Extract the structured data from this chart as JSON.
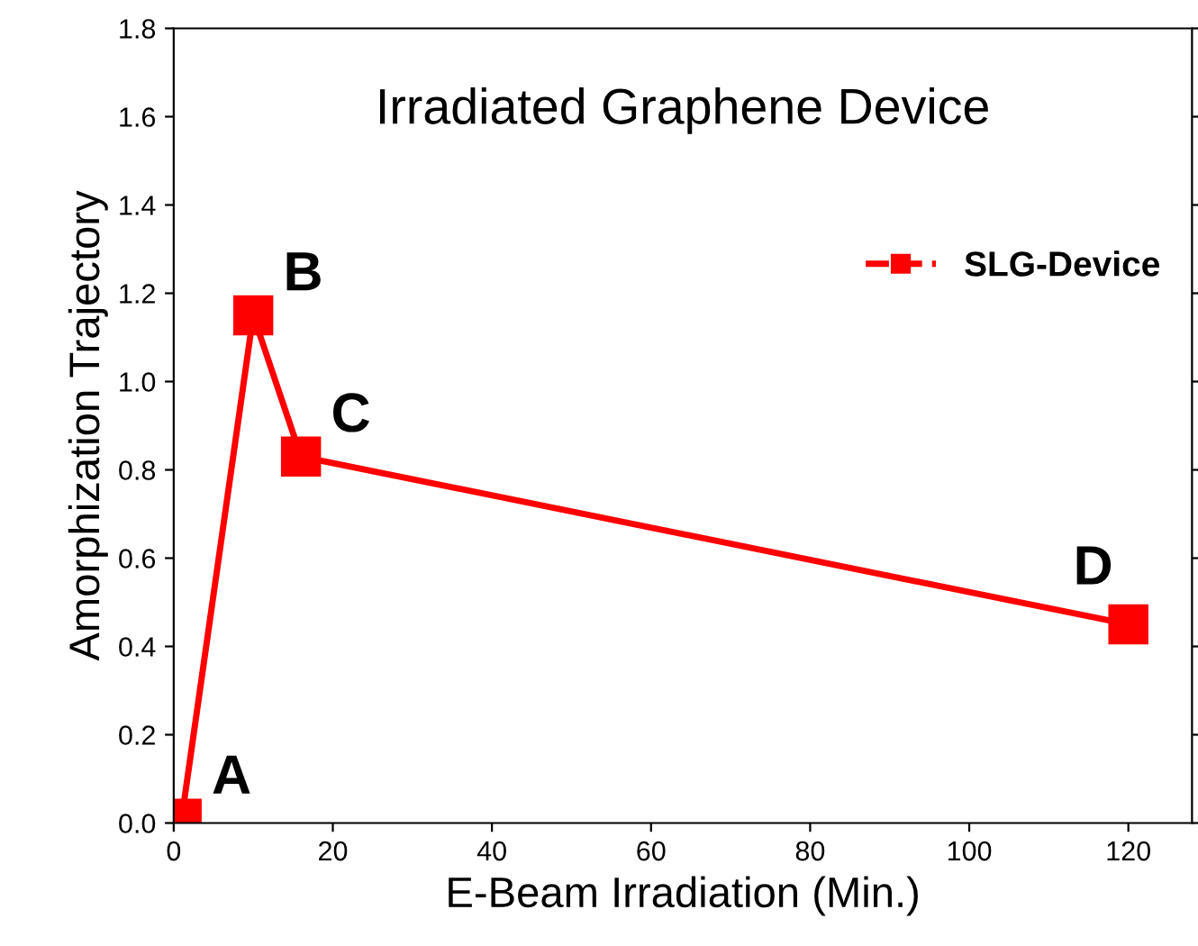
{
  "chart_data": {
    "type": "line",
    "title": "Irradiated Graphene Device",
    "xlabel": "E-Beam Irradiation (Min.)",
    "ylabel": "Amorphization Trajectory",
    "x": [
      1,
      10,
      16,
      120
    ],
    "series": [
      {
        "name": "SLG-Device",
        "color": "#ff0000",
        "values": [
          0.01,
          1.15,
          0.83,
          0.45
        ]
      }
    ],
    "annotations": [
      {
        "text": "A",
        "x": 1,
        "y": 0.01
      },
      {
        "text": "B",
        "x": 10,
        "y": 1.15
      },
      {
        "text": "C",
        "x": 16,
        "y": 0.83
      },
      {
        "text": "D",
        "x": 120,
        "y": 0.45
      }
    ],
    "xlim": [
      0,
      128
    ],
    "xticks": [
      0,
      20,
      40,
      60,
      80,
      100,
      120
    ],
    "ylim": [
      0,
      1.8
    ],
    "yticks": [
      {
        "value": 0,
        "label": "0.0"
      },
      0.2,
      0.4,
      0.6,
      0.8,
      {
        "value": 1,
        "label": "1.0"
      },
      1.2,
      1.4,
      1.6,
      1.8
    ],
    "marker": "square",
    "line_style": "solid",
    "legend": "top right",
    "grid": false
  }
}
